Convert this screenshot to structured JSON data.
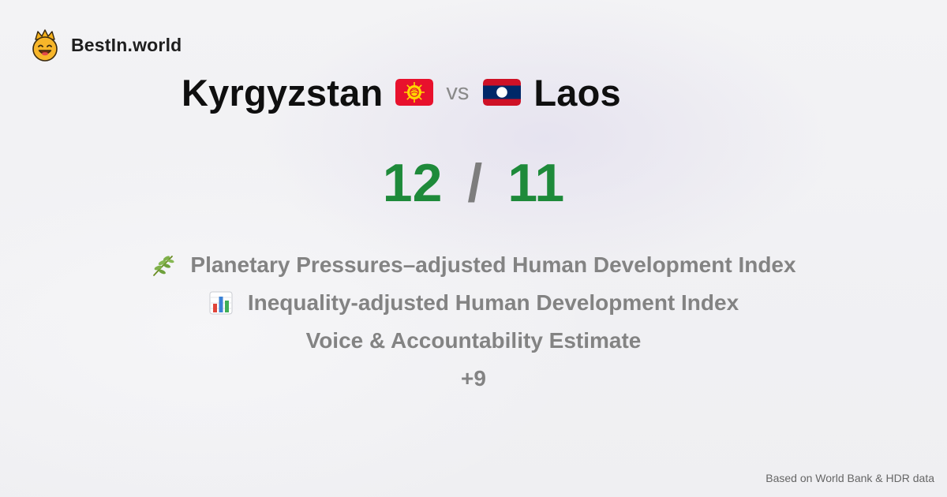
{
  "brand": {
    "name": "BestIn.world",
    "icon": "crown-smiley-icon"
  },
  "comparison": {
    "country_a": {
      "name": "Kyrgyzstan",
      "flag_icon": "kyrgyzstan-flag-icon",
      "score": "12"
    },
    "vs_label": "vs",
    "country_b": {
      "name": "Laos",
      "flag_icon": "laos-flag-icon",
      "score": "11"
    },
    "separator": "/"
  },
  "metrics": [
    {
      "icon": "leaf-branch-icon",
      "label": "Planetary Pressures–adjusted Human Development Index"
    },
    {
      "icon": "bar-chart-icon",
      "label": "Inequality-adjusted Human Development Index"
    },
    {
      "icon": "",
      "label": "Voice & Accountability Estimate"
    },
    {
      "icon": "",
      "label": "+9"
    }
  ],
  "footer": {
    "source": "Based on World Bank & HDR data"
  },
  "colors": {
    "score": "#1e8a3a",
    "muted_text": "#838383",
    "kyrgyzstan_red": "#e8112d",
    "kyrgyzstan_sun": "#ffd700",
    "laos_red": "#ce1126",
    "laos_blue": "#002868"
  }
}
